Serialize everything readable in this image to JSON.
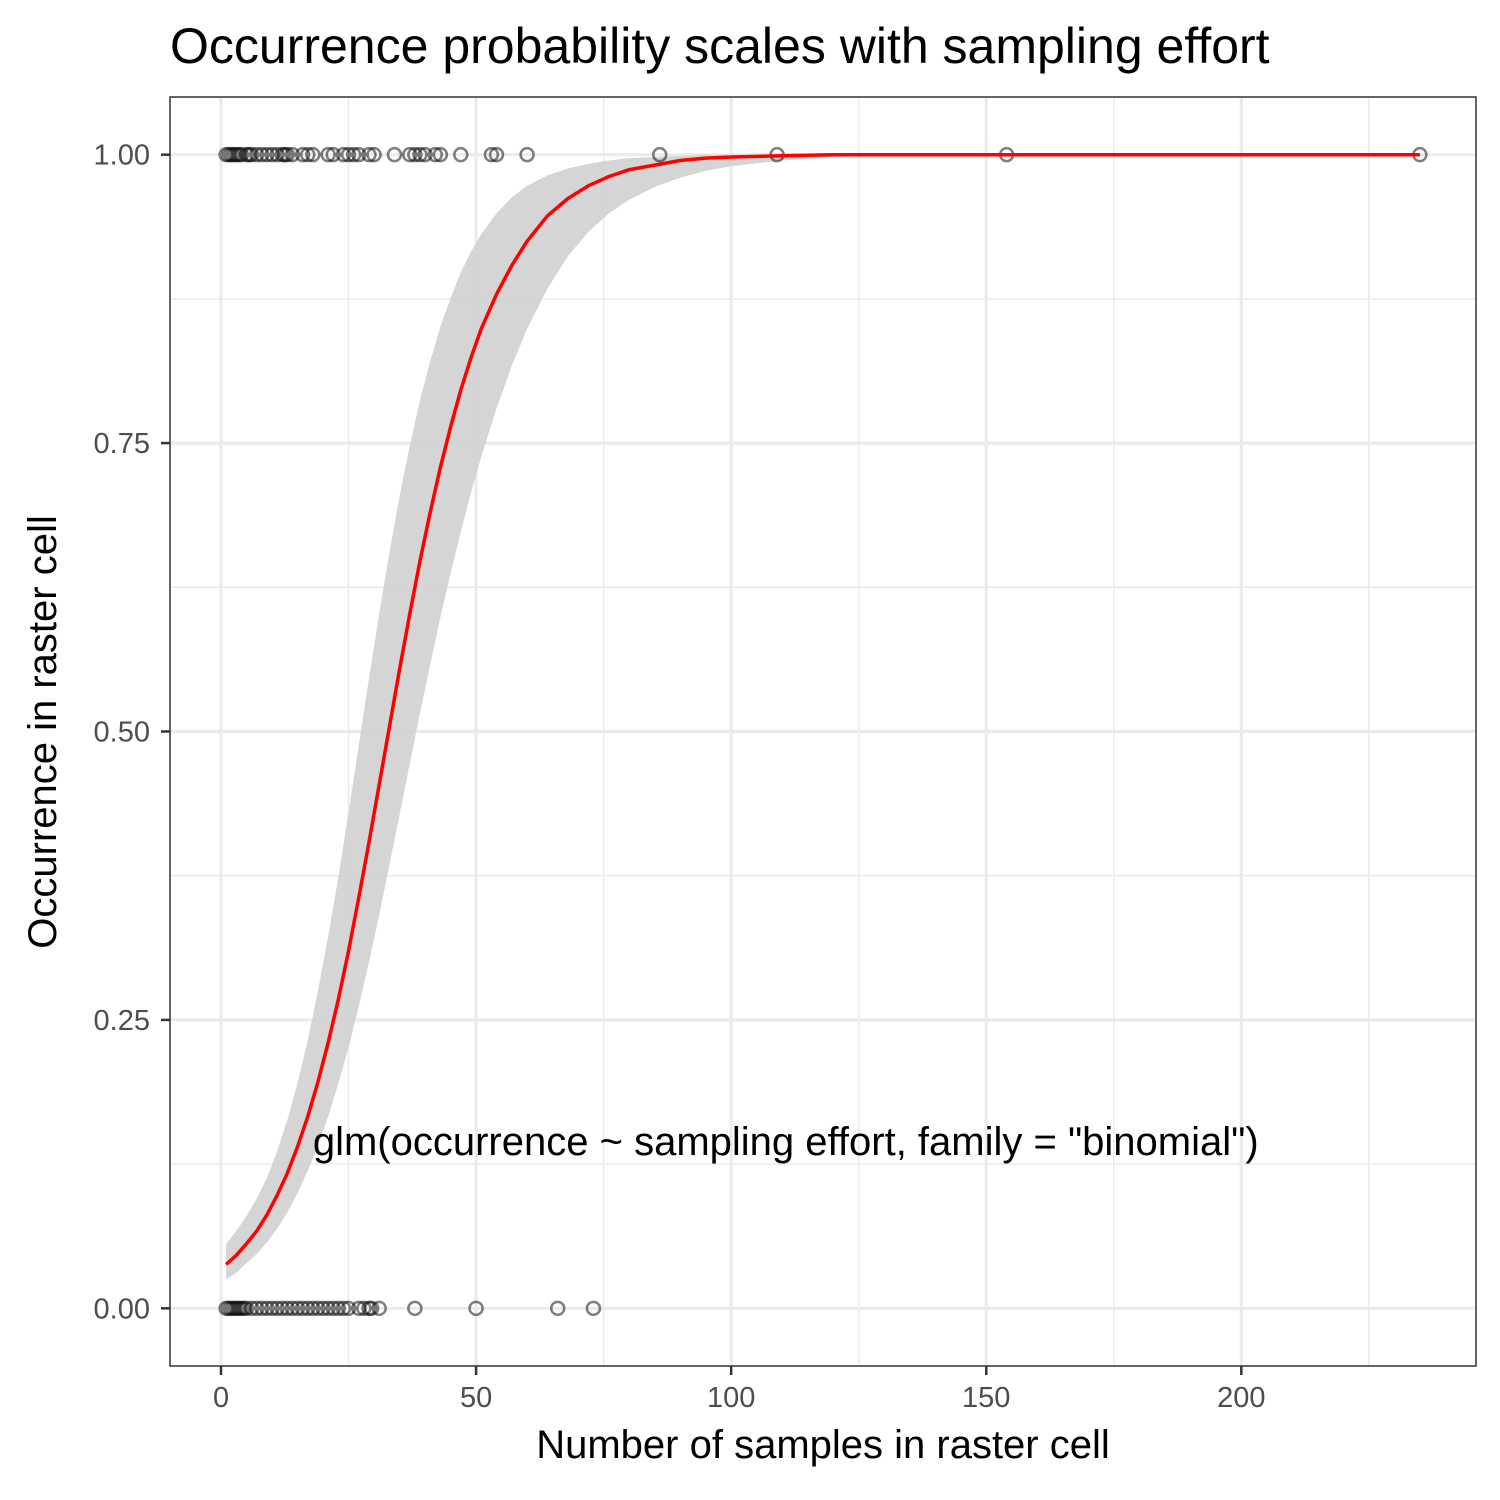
{
  "chart_data": {
    "type": "scatter",
    "title": "Occurrence probability scales with sampling effort",
    "xlabel": "Number of samples in raster cell",
    "ylabel": "Occurrence in raster cell",
    "xlim": [
      -10,
      246
    ],
    "ylim": [
      -0.05,
      1.05
    ],
    "x_ticks": [
      0,
      50,
      100,
      150,
      200
    ],
    "x_minor_ticks": [
      25,
      75,
      125,
      175,
      225
    ],
    "y_ticks": [
      0.0,
      0.25,
      0.5,
      0.75,
      1.0
    ],
    "y_tick_labels": [
      "0.00",
      "0.25",
      "0.50",
      "0.75",
      "1.00"
    ],
    "y_minor_ticks": [
      0.125,
      0.375,
      0.625,
      0.875
    ],
    "grid": true,
    "annotation": "glm(occurrence ~ sampling effort, family = \"binomial\")",
    "annotation_position": {
      "x": 18,
      "y": 0.145
    },
    "colors": {
      "points": "#000000",
      "fit_line": "#ff0000",
      "ribbon": "#d3d3d3",
      "grid": "#ebebeb",
      "panel_border": "#333333"
    },
    "points": {
      "occurrence_1": [
        1,
        1.5,
        2,
        2.5,
        3,
        3.5,
        4,
        5,
        5.5,
        6,
        7,
        8,
        9,
        10,
        11,
        12,
        12.5,
        13,
        14,
        16,
        17,
        18,
        21,
        22,
        24,
        25,
        26,
        27,
        29,
        30,
        34,
        37,
        38,
        39,
        40,
        42,
        43,
        47,
        53,
        54,
        60,
        86,
        109,
        154,
        235
      ],
      "occurrence_0": [
        1,
        1.5,
        2,
        2.5,
        3,
        3.5,
        4,
        4.5,
        5,
        6,
        7,
        8,
        9,
        10,
        11,
        12,
        13,
        14,
        15,
        16,
        17,
        18,
        19,
        20,
        21,
        22,
        23,
        24,
        25,
        27,
        28,
        29,
        29.5,
        31,
        38,
        50,
        66,
        73
      ]
    },
    "fit": {
      "model": "logistic",
      "x": [
        1,
        3,
        5,
        7,
        9,
        11,
        13,
        15,
        17,
        19,
        21,
        23,
        25,
        27,
        29,
        31,
        33,
        35,
        37,
        39,
        41,
        43,
        45,
        47,
        49,
        51,
        54,
        57,
        60,
        64,
        68,
        72,
        76,
        80,
        85,
        90,
        95,
        100,
        110,
        120,
        140,
        160,
        180,
        200,
        220,
        235
      ],
      "y": [
        0.038,
        0.046,
        0.056,
        0.067,
        0.081,
        0.098,
        0.117,
        0.14,
        0.166,
        0.196,
        0.23,
        0.268,
        0.31,
        0.356,
        0.404,
        0.454,
        0.504,
        0.554,
        0.602,
        0.648,
        0.69,
        0.729,
        0.764,
        0.796,
        0.824,
        0.849,
        0.879,
        0.904,
        0.925,
        0.947,
        0.962,
        0.973,
        0.981,
        0.987,
        0.991,
        0.995,
        0.997,
        0.998,
        0.999,
        1.0,
        1.0,
        1.0,
        1.0,
        1.0,
        1.0,
        1.0
      ],
      "ci_lower": [
        0.025,
        0.031,
        0.039,
        0.047,
        0.057,
        0.069,
        0.083,
        0.1,
        0.119,
        0.141,
        0.166,
        0.195,
        0.226,
        0.262,
        0.3,
        0.341,
        0.384,
        0.428,
        0.472,
        0.516,
        0.558,
        0.599,
        0.637,
        0.673,
        0.707,
        0.738,
        0.78,
        0.817,
        0.849,
        0.884,
        0.912,
        0.933,
        0.949,
        0.961,
        0.972,
        0.98,
        0.986,
        0.99,
        0.995,
        0.998,
        1.0,
        1.0,
        1.0,
        1.0,
        1.0,
        1.0
      ],
      "ci_upper": [
        0.056,
        0.067,
        0.08,
        0.095,
        0.113,
        0.136,
        0.163,
        0.195,
        0.232,
        0.275,
        0.322,
        0.374,
        0.43,
        0.488,
        0.546,
        0.602,
        0.655,
        0.704,
        0.748,
        0.787,
        0.821,
        0.851,
        0.876,
        0.898,
        0.916,
        0.931,
        0.949,
        0.963,
        0.973,
        0.982,
        0.988,
        0.992,
        0.995,
        0.997,
        0.998,
        0.999,
        1.0,
        1.0,
        1.0,
        1.0,
        1.0,
        1.0,
        1.0,
        1.0,
        1.0,
        1.0
      ]
    }
  }
}
